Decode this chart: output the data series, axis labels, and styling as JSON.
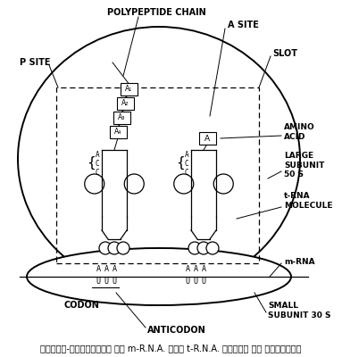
{
  "caption": "चित्र-राइबोसोम पर m-R.N.A. तथा t-R.N.A. अणुओं की स्थिति।",
  "bg_color": "#ffffff",
  "labels": {
    "polypeptide_chain": "POLYPEPTIDE CHAIN",
    "a_site": "A SITE",
    "p_site": "P SITE",
    "slot": "SLOT",
    "amino_acid": "AMINO\nACID",
    "large_subunit": "LARGE\nSUBUNIT\n50 S",
    "t_rna": "t-RNA\nMOLECULE",
    "m_rna": "m-RNA",
    "codon": "CODON",
    "anticodon": "ANTICODON",
    "small_subunit": "SMALL\nSUBUNIT 30 S"
  },
  "amino_acids_left": [
    "A₁",
    "A₂",
    "A₃",
    "A₄"
  ],
  "amino_acid_right": "A",
  "acc_letters": [
    "A",
    "C",
    "C"
  ],
  "codon_left": [
    "A",
    "A",
    "A"
  ],
  "anticodon_left": [
    "U",
    "U",
    "U"
  ],
  "codon_right": [
    "A",
    "A",
    "A"
  ],
  "anticodon_right": [
    "U",
    "U",
    "U"
  ]
}
